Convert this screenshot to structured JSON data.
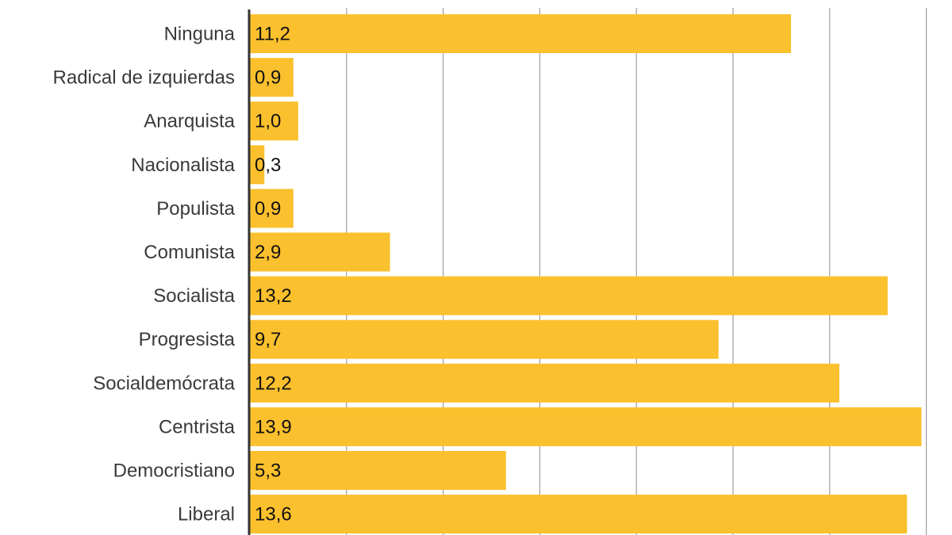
{
  "chart_data": {
    "type": "bar",
    "orientation": "horizontal",
    "categories": [
      "Ninguna",
      "Radical de izquierdas",
      "Anarquista",
      "Nacionalista",
      "Populista",
      "Comunista",
      "Socialista",
      "Progresista",
      "Socialdemócrata",
      "Centrista",
      "Democristiano",
      "Liberal"
    ],
    "values": [
      11.2,
      0.9,
      1.0,
      0.3,
      0.9,
      2.9,
      13.2,
      9.7,
      12.2,
      13.9,
      5.3,
      13.6
    ],
    "value_labels": [
      "11,2",
      "0,9",
      "1,0",
      "0,3",
      "0,9",
      "2,9",
      "13,2",
      "9,7",
      "12,2",
      "13,9",
      "5,3",
      "13,6"
    ],
    "title": "",
    "xlabel": "",
    "ylabel": "",
    "xlim": [
      0,
      14
    ],
    "grid": true,
    "grid_step": 2,
    "bar_color": "#FBC02D",
    "grid_color": "#9e9e9e",
    "axis_color": "#333333"
  }
}
